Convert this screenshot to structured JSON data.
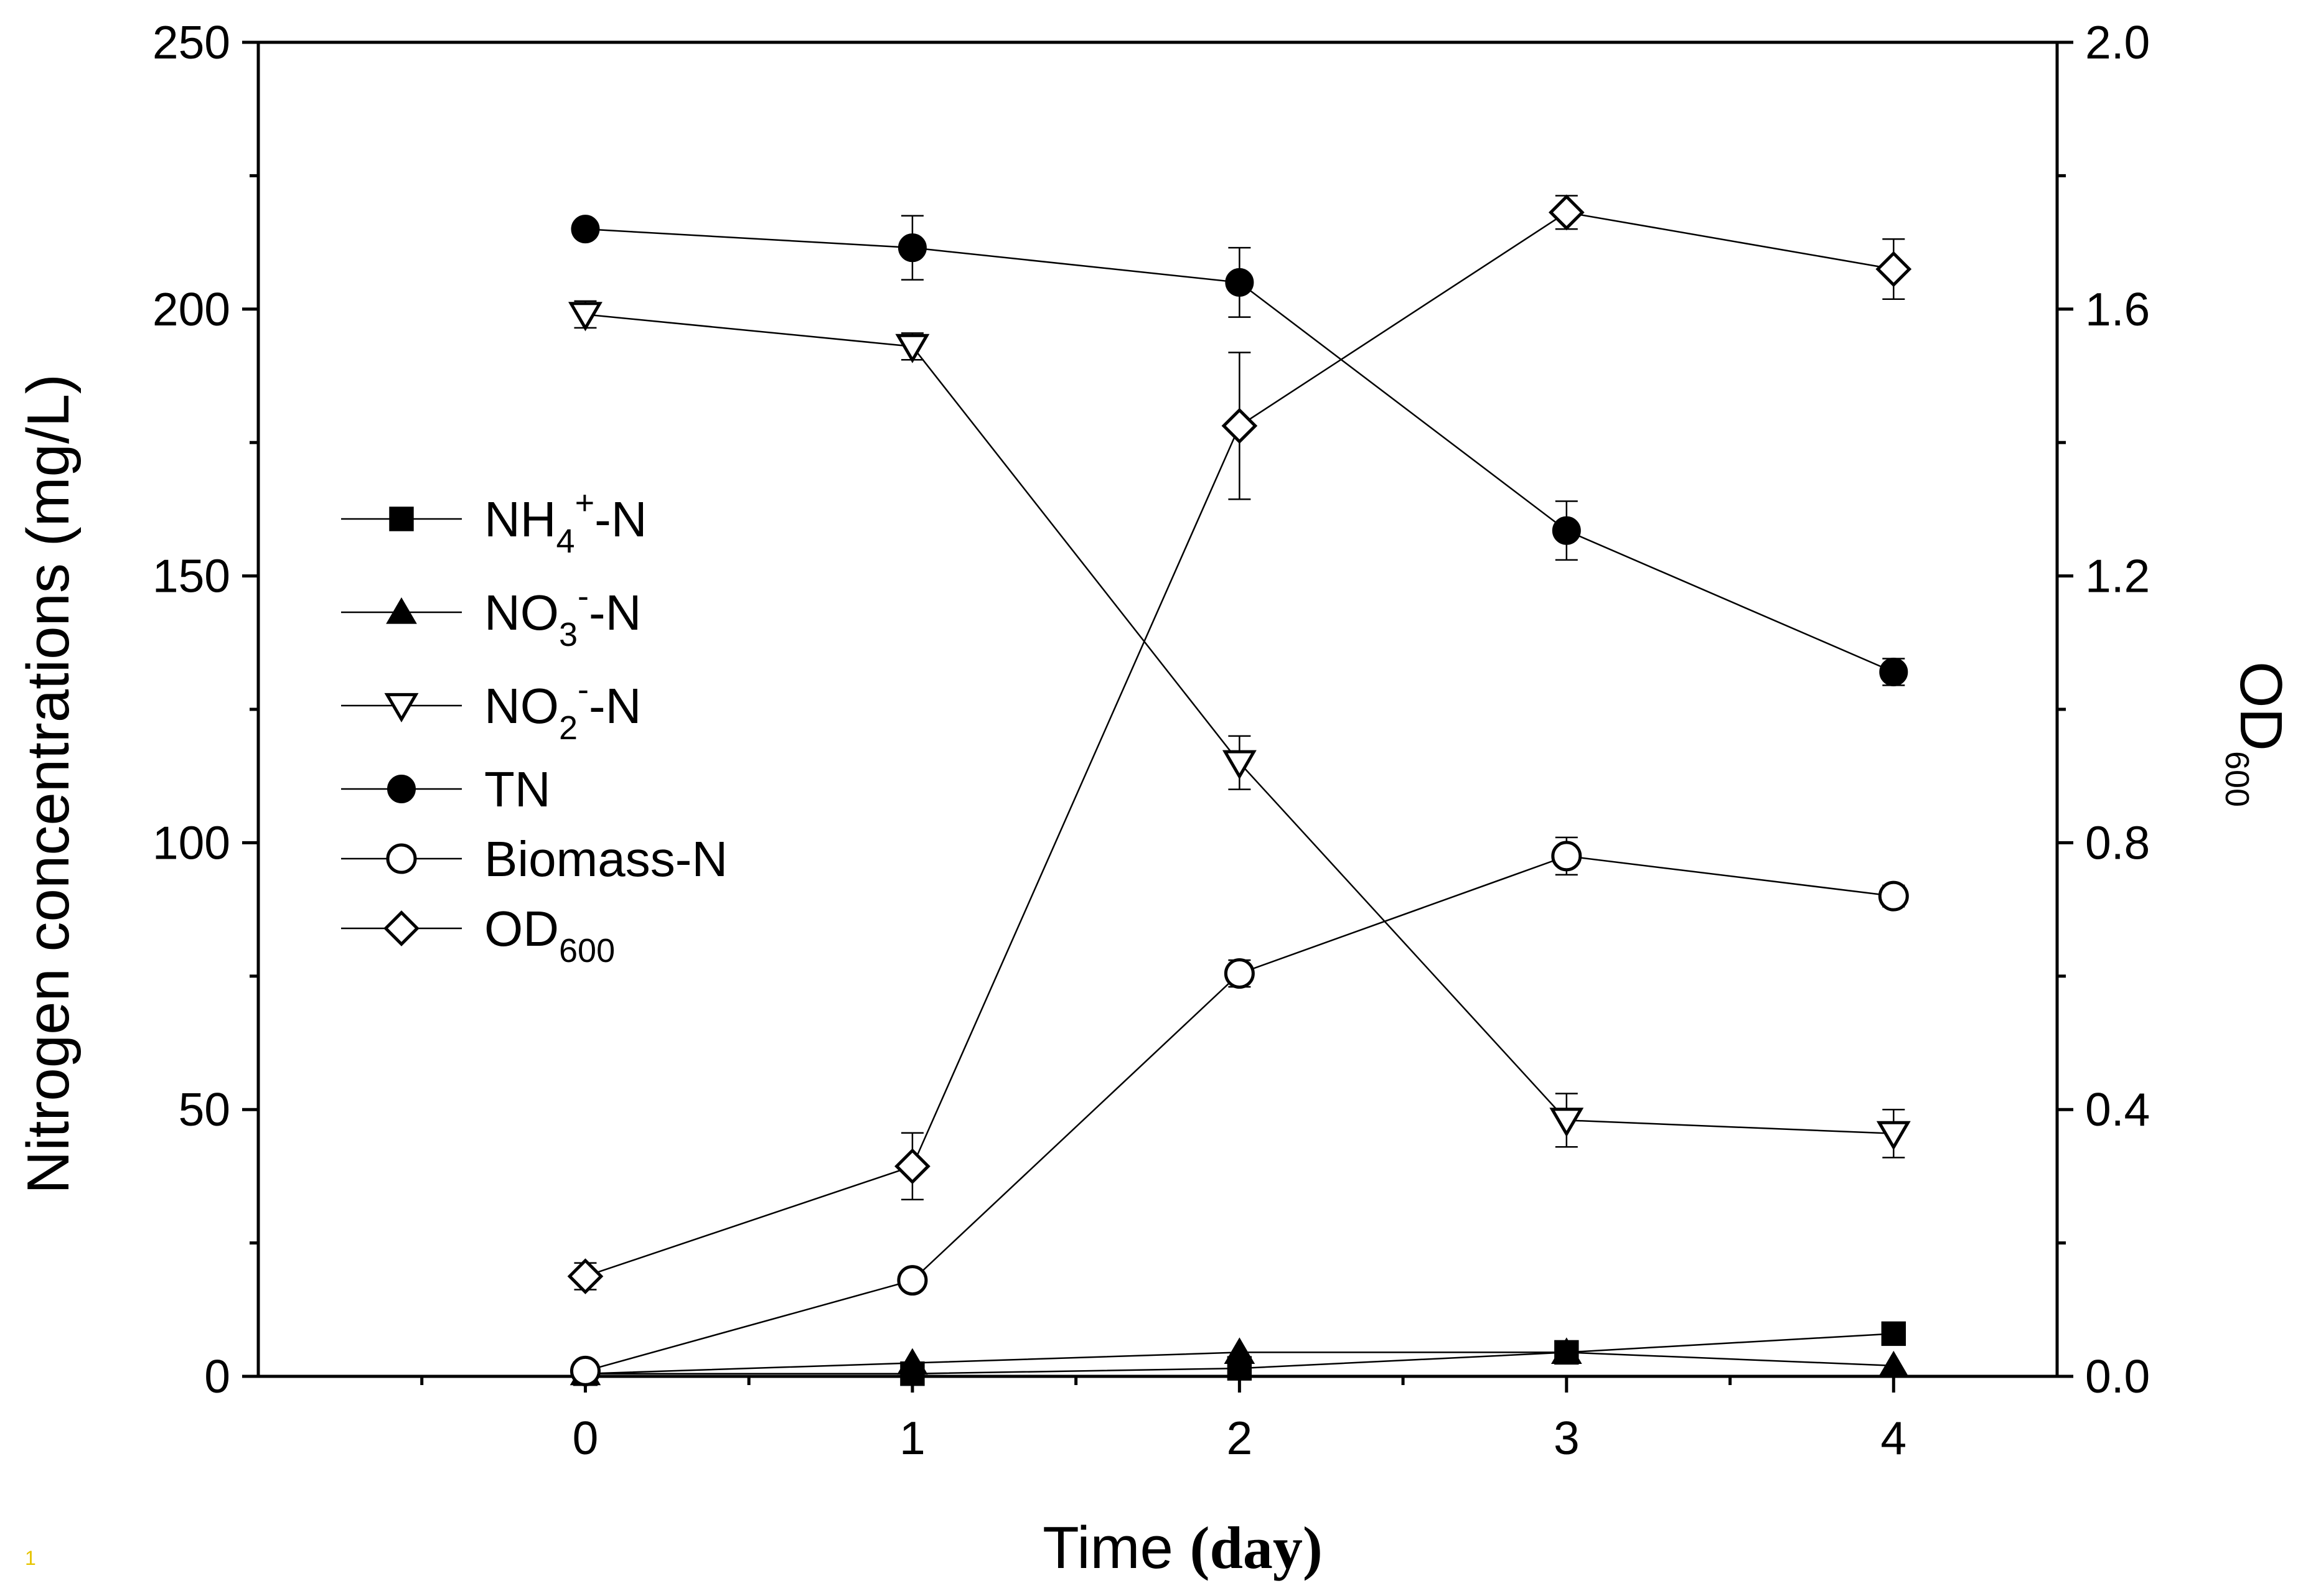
{
  "chart_data": {
    "type": "line",
    "x": [
      0,
      1,
      2,
      3,
      4
    ],
    "xlabel": "Time",
    "xlabel_unit": "(day)",
    "xlim": [
      -1,
      4.5
    ],
    "xticks": [
      "0",
      "1",
      "2",
      "3",
      "4"
    ],
    "ylabel": "Nitrogen concentrations (mg/L)",
    "ylim": [
      0,
      250
    ],
    "yticks": [
      "0",
      "50",
      "100",
      "150",
      "200",
      "250"
    ],
    "y2label": "OD",
    "y2label_sub": "600",
    "y2lim": [
      0,
      2.0
    ],
    "y2ticks": [
      "0.0",
      "0.4",
      "0.8",
      "1.2",
      "1.6",
      "2.0"
    ],
    "grid": false,
    "legend_position": "center-left",
    "series": [
      {
        "name": "NH4+-N",
        "label_main": "NH",
        "label_sub": "4",
        "label_sup": "+",
        "label_tail": "-N",
        "marker": "square-filled",
        "axis": "left",
        "values": [
          0.5,
          0.5,
          1.5,
          4.5,
          8.0
        ],
        "errors": [
          0,
          0,
          0,
          0,
          0
        ]
      },
      {
        "name": "NO3--N",
        "label_main": "NO",
        "label_sub": "3",
        "label_sup": "-",
        "label_tail": "-N",
        "marker": "triangle-up-filled",
        "axis": "left",
        "values": [
          0.5,
          2.5,
          4.5,
          4.5,
          2.0
        ],
        "errors": [
          0,
          0,
          0,
          0,
          0
        ]
      },
      {
        "name": "NO2--N",
        "label_main": "NO",
        "label_sub": "2",
        "label_sup": "-",
        "label_tail": "-N",
        "marker": "triangle-down-open",
        "axis": "left",
        "values": [
          199,
          193,
          115,
          48,
          45.5
        ],
        "errors": [
          2.5,
          2.5,
          5,
          5,
          4.5
        ]
      },
      {
        "name": "TN",
        "label_main": "TN",
        "label_sub": "",
        "label_sup": "",
        "label_tail": "",
        "marker": "circle-filled",
        "axis": "left",
        "values": [
          215,
          211.5,
          205,
          158.5,
          132
        ],
        "errors": [
          0,
          6,
          6.5,
          5.5,
          2.5
        ]
      },
      {
        "name": "Biomass-N",
        "label_main": "Biomass-N",
        "label_sub": "",
        "label_sup": "",
        "label_tail": "",
        "marker": "circle-open",
        "axis": "left",
        "values": [
          1.0,
          18,
          75.5,
          97.5,
          90
        ],
        "errors": [
          0,
          1.5,
          2.5,
          3.5,
          2.0
        ]
      },
      {
        "name": "OD600",
        "label_main": "OD",
        "label_sub": "600",
        "label_sup": "",
        "label_tail": "",
        "marker": "diamond-open",
        "axis": "right",
        "values": [
          0.15,
          0.315,
          1.425,
          1.745,
          1.66
        ],
        "errors": [
          0.02,
          0.05,
          0.11,
          0.025,
          0.045
        ]
      }
    ]
  },
  "corner_mark": "1"
}
